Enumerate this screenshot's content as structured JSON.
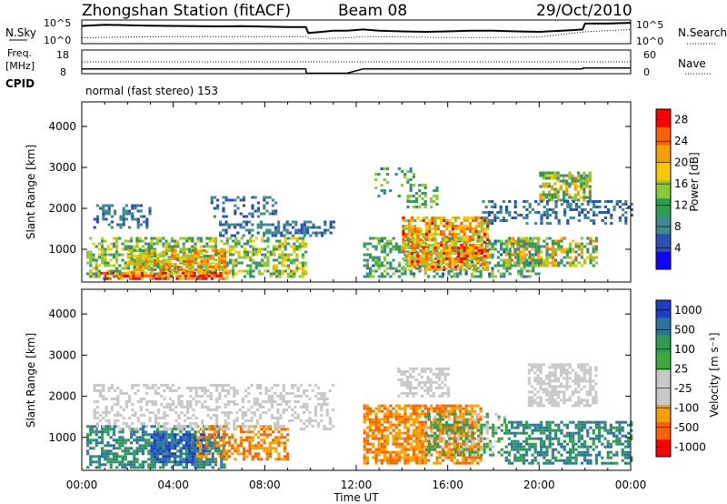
{
  "header": {
    "station": "Zhongshan Station (fitACF)",
    "beam": "Beam 08",
    "date": "29/Oct/2010",
    "mode": "normal (fast stereo) 153"
  },
  "colors": {
    "power": [
      "#1400ff",
      "#2a50b4",
      "#3f8a8c",
      "#2f9e4a",
      "#8cc83c",
      "#f5c800",
      "#f5a000",
      "#f56400",
      "#ff0000"
    ],
    "velocity": [
      "#ff0000",
      "#f56400",
      "#f5a000",
      "#c8c8c8",
      "#c8c8c8",
      "#3fa83c",
      "#2f9a50",
      "#2a74a0",
      "#1e3cc8"
    ]
  },
  "chart_data": [
    {
      "type": "line",
      "name": "noise-panel",
      "left_label": "N.Sky",
      "right_label": "N.Search",
      "left_ticks": [
        "10^5",
        "10^0"
      ],
      "right_ticks": [
        "10^5",
        "10^0"
      ],
      "series": [
        {
          "name": "N.Sky",
          "style": "solid",
          "x": [
            0,
            1,
            2,
            3,
            4,
            5,
            6,
            7,
            8,
            9,
            9.8,
            9.9,
            10.5,
            11.0,
            11.6,
            12.3,
            13,
            14,
            15,
            16,
            17,
            18,
            19,
            20,
            21,
            21.9,
            22.0,
            23,
            24
          ],
          "y": [
            0.75,
            0.8,
            0.78,
            0.76,
            0.75,
            0.74,
            0.73,
            0.74,
            0.72,
            0.7,
            0.7,
            0.45,
            0.5,
            0.55,
            0.55,
            0.6,
            0.55,
            0.52,
            0.5,
            0.52,
            0.55,
            0.55,
            0.52,
            0.5,
            0.55,
            0.6,
            0.85,
            0.85,
            0.88
          ]
        },
        {
          "name": "N.Search",
          "style": "dotted",
          "x": [
            0,
            2,
            4,
            6,
            8,
            9.8,
            10,
            11.6,
            12.3,
            14,
            16,
            18,
            20,
            22,
            24
          ],
          "y": [
            0.25,
            0.28,
            0.3,
            0.3,
            0.3,
            0.3,
            0.2,
            0.25,
            0.3,
            0.28,
            0.26,
            0.26,
            0.28,
            0.5,
            0.6
          ]
        }
      ]
    },
    {
      "type": "line",
      "name": "frequency-panel",
      "left_label_top": "Freq.",
      "left_label_bottom": "[MHz]",
      "cpid_label": "CPID",
      "right_label": "Nave",
      "left_ticks": [
        18,
        8
      ],
      "right_ticks": [
        60,
        0
      ],
      "series": [
        {
          "name": "Freq",
          "style": "solid",
          "x": [
            0,
            9.8,
            9.81,
            11.6,
            12.3,
            21.9,
            21.91,
            24
          ],
          "y": [
            10,
            10,
            8.2,
            8.2,
            10,
            10,
            10.4,
            10.4
          ]
        },
        {
          "name": "Nave",
          "style": "dotted",
          "x": [
            0,
            24
          ],
          "y": [
            13,
            13
          ]
        }
      ]
    },
    {
      "type": "heatmap",
      "name": "power-panel",
      "ylabel": "Slant Range [km]",
      "yticks": [
        1000,
        2000,
        3000,
        4000
      ],
      "ylim": [
        200,
        4600
      ],
      "xlim": [
        0,
        24
      ],
      "colorbar_label": "Power [dB]",
      "colorbar_ticks": [
        4,
        8,
        12,
        16,
        20,
        24,
        28
      ],
      "colorbar_range": [
        0,
        30
      ],
      "regions": [
        {
          "x0": 0.2,
          "x1": 9.8,
          "y0": 300,
          "y1": 1300,
          "v0": 8,
          "v1": 20,
          "d": 0.55
        },
        {
          "x0": 2.0,
          "x1": 6.2,
          "y0": 450,
          "y1": 1000,
          "v0": 12,
          "v1": 26,
          "d": 0.75
        },
        {
          "x0": 0.8,
          "x1": 6.5,
          "y0": 250,
          "y1": 450,
          "v0": 18,
          "v1": 30,
          "d": 0.7
        },
        {
          "x0": 0.5,
          "x1": 3.0,
          "y0": 1500,
          "y1": 2100,
          "v0": 4,
          "v1": 10,
          "d": 0.45
        },
        {
          "x0": 6.0,
          "x1": 11.0,
          "y0": 1300,
          "y1": 1700,
          "v0": 4,
          "v1": 10,
          "d": 0.5
        },
        {
          "x0": 5.5,
          "x1": 8.5,
          "y0": 1800,
          "y1": 2300,
          "v0": 4,
          "v1": 10,
          "d": 0.3
        },
        {
          "x0": 12.3,
          "x1": 20.0,
          "y0": 300,
          "y1": 1300,
          "v0": 6,
          "v1": 16,
          "d": 0.5
        },
        {
          "x0": 14.0,
          "x1": 17.8,
          "y0": 500,
          "y1": 1800,
          "v0": 14,
          "v1": 28,
          "d": 0.72
        },
        {
          "x0": 18.5,
          "x1": 22.5,
          "y0": 600,
          "y1": 1300,
          "v0": 8,
          "v1": 24,
          "d": 0.6
        },
        {
          "x0": 14.2,
          "x1": 15.5,
          "y0": 2000,
          "y1": 2600,
          "v0": 8,
          "v1": 16,
          "d": 0.4
        },
        {
          "x0": 20.0,
          "x1": 22.2,
          "y0": 2200,
          "y1": 2900,
          "v0": 8,
          "v1": 24,
          "d": 0.65
        },
        {
          "x0": 17.5,
          "x1": 24.0,
          "y0": 1600,
          "y1": 2200,
          "v0": 4,
          "v1": 10,
          "d": 0.4
        },
        {
          "x0": 12.8,
          "x1": 14.5,
          "y0": 2300,
          "y1": 3000,
          "v0": 6,
          "v1": 16,
          "d": 0.25
        }
      ]
    },
    {
      "type": "heatmap",
      "name": "velocity-panel",
      "ylabel": "Slant Range [km]",
      "yticks": [
        1000,
        2000,
        3000,
        4000
      ],
      "ylim": [
        200,
        4600
      ],
      "xlim": [
        0,
        24
      ],
      "xlabel": "Time UT",
      "xticks": [
        "00:00",
        "04:00",
        "08:00",
        "12:00",
        "16:00",
        "20:00",
        "00:00"
      ],
      "colorbar_label": "Velocity [m s⁻¹]",
      "colorbar_ticks": [
        -1000,
        -500,
        -100,
        -25,
        25,
        100,
        500,
        1000
      ],
      "regions": [
        {
          "x0": 0.2,
          "x1": 6.2,
          "y0": 300,
          "y1": 1300,
          "v0": 6,
          "v1": 8,
          "d": 0.6
        },
        {
          "x0": 3.0,
          "x1": 5.3,
          "y0": 400,
          "y1": 1100,
          "v0": 7,
          "v1": 9,
          "d": 0.7
        },
        {
          "x0": 5.0,
          "x1": 9.0,
          "y0": 500,
          "y1": 1300,
          "v0": 1,
          "v1": 3,
          "d": 0.5
        },
        {
          "x0": 0.5,
          "x1": 11.0,
          "y0": 1200,
          "y1": 2300,
          "v0": 3,
          "v1": 5,
          "d": 0.35
        },
        {
          "x0": 12.3,
          "x1": 17.5,
          "y0": 400,
          "y1": 1800,
          "v0": 1,
          "v1": 3,
          "d": 0.7
        },
        {
          "x0": 15.0,
          "x1": 18.5,
          "y0": 600,
          "y1": 1600,
          "v0": 4,
          "v1": 7,
          "d": 0.45
        },
        {
          "x0": 18.5,
          "x1": 24.0,
          "y0": 400,
          "y1": 1400,
          "v0": 6,
          "v1": 8,
          "d": 0.55
        },
        {
          "x0": 19.5,
          "x1": 22.5,
          "y0": 1800,
          "y1": 2800,
          "v0": 3,
          "v1": 5,
          "d": 0.6
        },
        {
          "x0": 13.8,
          "x1": 16.0,
          "y0": 2000,
          "y1": 2700,
          "v0": 3,
          "v1": 5,
          "d": 0.5
        }
      ]
    }
  ]
}
